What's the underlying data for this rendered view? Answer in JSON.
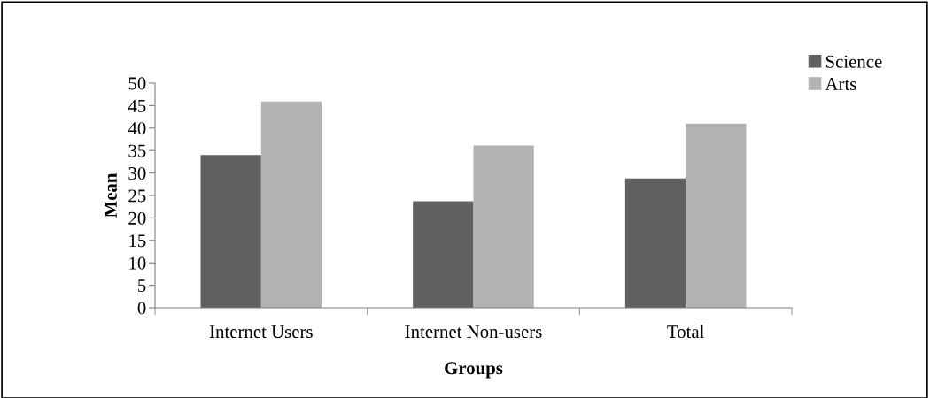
{
  "chart_data": {
    "type": "bar",
    "xlabel": "Groups",
    "ylabel": "Mean",
    "categories": [
      "Internet Users",
      "Internet Non-users",
      "Total"
    ],
    "series": [
      {
        "name": "Science",
        "color": "#606060",
        "values": [
          34,
          23.7,
          28.8
        ]
      },
      {
        "name": "Arts",
        "color": "#b2b2b2",
        "values": [
          45.9,
          36.1,
          41.0
        ]
      }
    ],
    "ylim": [
      0,
      50
    ],
    "yticks": [
      0,
      5,
      10,
      15,
      20,
      25,
      30,
      35,
      40,
      45,
      50
    ],
    "grid": false,
    "legend": "top right"
  }
}
